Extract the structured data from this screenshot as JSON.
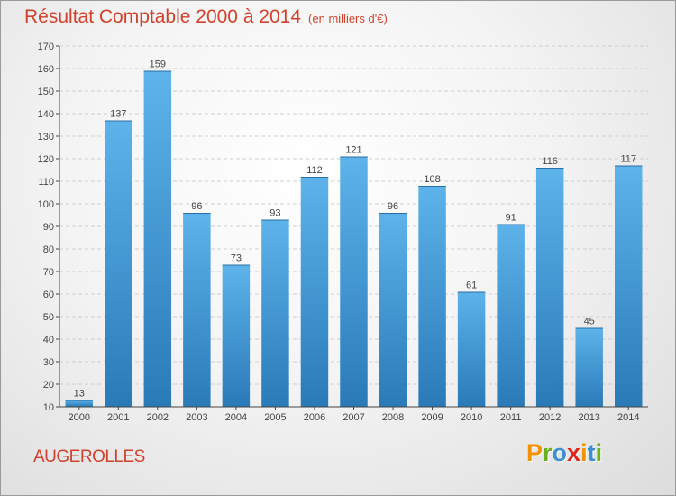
{
  "chart_data": {
    "type": "bar",
    "title": "Résultat Comptable 2000 à 2014",
    "subtitle": "(en milliers d'€)",
    "categories": [
      "2000",
      "2001",
      "2002",
      "2003",
      "2004",
      "2005",
      "2006",
      "2007",
      "2008",
      "2009",
      "2010",
      "2011",
      "2012",
      "2013",
      "2014"
    ],
    "values": [
      13,
      137,
      159,
      96,
      73,
      93,
      112,
      121,
      96,
      108,
      61,
      91,
      116,
      45,
      117
    ],
    "ylim": [
      10,
      170
    ],
    "yticks": [
      10,
      20,
      30,
      40,
      50,
      60,
      70,
      80,
      90,
      100,
      110,
      120,
      130,
      140,
      150,
      160,
      170
    ],
    "xlabel": "",
    "ylabel": "",
    "grid": true,
    "bar_color_top": "#5db3ea",
    "bar_color_bottom": "#2a7ab8"
  },
  "region": "AUGEROLLES",
  "logo": {
    "letters": [
      "P",
      "r",
      "o",
      "x",
      "i",
      "t",
      "i"
    ],
    "colors": [
      "#f39200",
      "#6ab023",
      "#3d8fd1",
      "#e2231a",
      "#f39200",
      "#3d8fd1",
      "#6ab023"
    ]
  },
  "colors": {
    "title": "#d1412b",
    "axis": "#444444",
    "grid": "#cfcfcf"
  }
}
